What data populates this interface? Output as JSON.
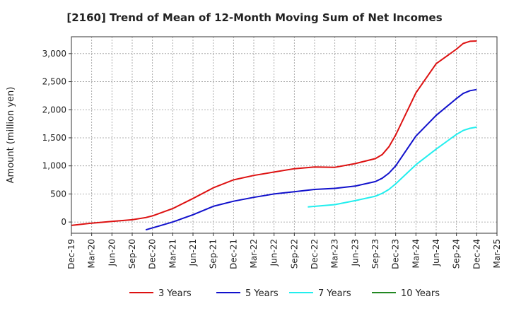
{
  "chart_data": {
    "type": "line",
    "title": "[2160]  Trend of Mean of 12-Month Moving Sum of Net Incomes",
    "ylabel": "Amount (million yen)",
    "xlabel": "",
    "ylim": [
      -200,
      3300
    ],
    "yticks": [
      0,
      500,
      1000,
      1500,
      2000,
      2500,
      3000
    ],
    "ytick_labels": [
      "0",
      "500",
      "1,000",
      "1,500",
      "2,000",
      "2,500",
      "3,000"
    ],
    "x_range": [
      "2019-12",
      "2025-03"
    ],
    "xtick_labels": [
      "Dec-19",
      "Mar-20",
      "Jun-20",
      "Sep-20",
      "Dec-20",
      "Mar-21",
      "Jun-21",
      "Sep-21",
      "Dec-21",
      "Mar-22",
      "Jun-22",
      "Sep-22",
      "Dec-22",
      "Mar-23",
      "Jun-23",
      "Sep-23",
      "Dec-23",
      "Mar-24",
      "Jun-24",
      "Sep-24",
      "Dec-24",
      "Mar-25"
    ],
    "grid": true,
    "legend_position": "bottom",
    "series": [
      {
        "name": "3 Years",
        "color": "#dd1111",
        "points": [
          [
            "2019-12",
            -60
          ],
          [
            "2020-03",
            -20
          ],
          [
            "2020-06",
            10
          ],
          [
            "2020-09",
            40
          ],
          [
            "2020-11",
            80
          ],
          [
            "2020-12",
            110
          ],
          [
            "2021-03",
            240
          ],
          [
            "2021-06",
            420
          ],
          [
            "2021-09",
            610
          ],
          [
            "2021-12",
            750
          ],
          [
            "2022-03",
            830
          ],
          [
            "2022-06",
            890
          ],
          [
            "2022-09",
            950
          ],
          [
            "2022-12",
            980
          ],
          [
            "2023-03",
            975
          ],
          [
            "2023-06",
            1040
          ],
          [
            "2023-09",
            1130
          ],
          [
            "2023-10",
            1200
          ],
          [
            "2023-11",
            1340
          ],
          [
            "2023-12",
            1550
          ],
          [
            "2024-03",
            2300
          ],
          [
            "2024-06",
            2820
          ],
          [
            "2024-09",
            3080
          ],
          [
            "2024-10",
            3180
          ],
          [
            "2024-11",
            3220
          ],
          [
            "2024-12",
            3225
          ]
        ]
      },
      {
        "name": "5 Years",
        "color": "#1111cc",
        "points": [
          [
            "2020-11",
            -140
          ],
          [
            "2021-01",
            -70
          ],
          [
            "2021-03",
            0
          ],
          [
            "2021-06",
            130
          ],
          [
            "2021-09",
            280
          ],
          [
            "2021-12",
            370
          ],
          [
            "2022-03",
            440
          ],
          [
            "2022-06",
            500
          ],
          [
            "2022-09",
            540
          ],
          [
            "2022-12",
            580
          ],
          [
            "2023-03",
            600
          ],
          [
            "2023-06",
            640
          ],
          [
            "2023-09",
            720
          ],
          [
            "2023-10",
            780
          ],
          [
            "2023-11",
            870
          ],
          [
            "2023-12",
            1000
          ],
          [
            "2024-03",
            1530
          ],
          [
            "2024-06",
            1900
          ],
          [
            "2024-09",
            2200
          ],
          [
            "2024-10",
            2290
          ],
          [
            "2024-11",
            2340
          ],
          [
            "2024-12",
            2360
          ]
        ]
      },
      {
        "name": "7 Years",
        "color": "#22eeee",
        "points": [
          [
            "2022-11",
            270
          ],
          [
            "2023-01",
            290
          ],
          [
            "2023-03",
            310
          ],
          [
            "2023-06",
            380
          ],
          [
            "2023-09",
            460
          ],
          [
            "2023-10",
            510
          ],
          [
            "2023-11",
            580
          ],
          [
            "2023-12",
            680
          ],
          [
            "2024-03",
            1020
          ],
          [
            "2024-06",
            1300
          ],
          [
            "2024-09",
            1560
          ],
          [
            "2024-10",
            1630
          ],
          [
            "2024-11",
            1670
          ],
          [
            "2024-12",
            1690
          ]
        ]
      },
      {
        "name": "10 Years",
        "color": "#228822",
        "points": []
      }
    ]
  }
}
